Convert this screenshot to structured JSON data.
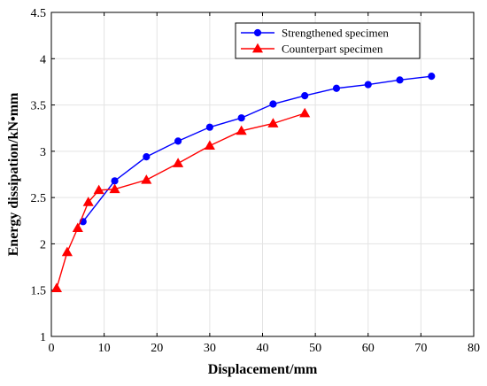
{
  "chart_data": {
    "type": "line",
    "title": "",
    "xlabel": "Displacement/mm",
    "ylabel": "Energy dissipation/kN•mm",
    "xlim": [
      0,
      80
    ],
    "ylim": [
      1,
      4.5
    ],
    "xticks": [
      "0",
      "10",
      "20",
      "30",
      "40",
      "50",
      "60",
      "70",
      "80"
    ],
    "yticks": [
      "1",
      "1.5",
      "2",
      "2.5",
      "3",
      "3.5",
      "4",
      "4.5"
    ],
    "grid": true,
    "legend_position": "top-right",
    "series": [
      {
        "name": "Strengthened specimen",
        "color": "#0000ff",
        "marker": "circle",
        "x": [
          6,
          12,
          18,
          24,
          30,
          36,
          42,
          48,
          54,
          60,
          66,
          72
        ],
        "y": [
          2.24,
          2.68,
          2.94,
          3.11,
          3.26,
          3.36,
          3.51,
          3.6,
          3.68,
          3.72,
          3.77,
          3.81
        ]
      },
      {
        "name": "Counterpart specimen",
        "color": "#ff0000",
        "marker": "triangle",
        "x": [
          1,
          3,
          5,
          7,
          9,
          12,
          18,
          24,
          30,
          36,
          42,
          48
        ],
        "y": [
          1.52,
          1.91,
          2.17,
          2.45,
          2.58,
          2.59,
          2.69,
          2.87,
          3.06,
          3.22,
          3.3,
          3.41
        ]
      }
    ]
  }
}
